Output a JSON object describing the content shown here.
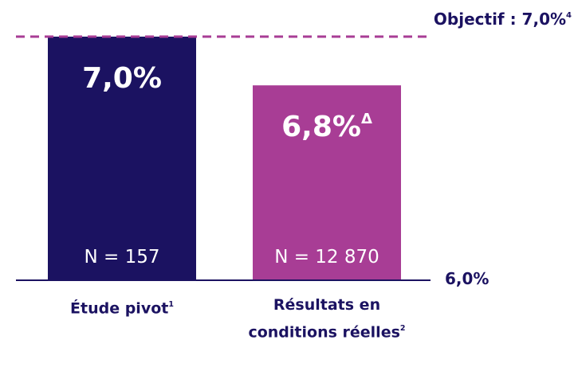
{
  "chart_data": {
    "type": "bar",
    "categories": [
      "Étude pivot",
      "Résultats en conditions réelles"
    ],
    "category_footnotes": [
      "1",
      "2"
    ],
    "values": [
      7.0,
      6.8
    ],
    "value_labels": [
      "7,0%",
      "6,8%"
    ],
    "value_label_footnotes": [
      null,
      "Δ"
    ],
    "n_labels": [
      "N = 157",
      "N = 12 870"
    ],
    "colors": [
      "#1b1261",
      "#a83d95"
    ],
    "ylim": [
      6.0,
      7.0
    ],
    "yticks": [
      {
        "value": 6.0,
        "label": "6,0%"
      }
    ],
    "target": {
      "value": 7.0,
      "label": "Objectif : 7,0%",
      "footnote": "4",
      "color": "#a83d95"
    }
  }
}
